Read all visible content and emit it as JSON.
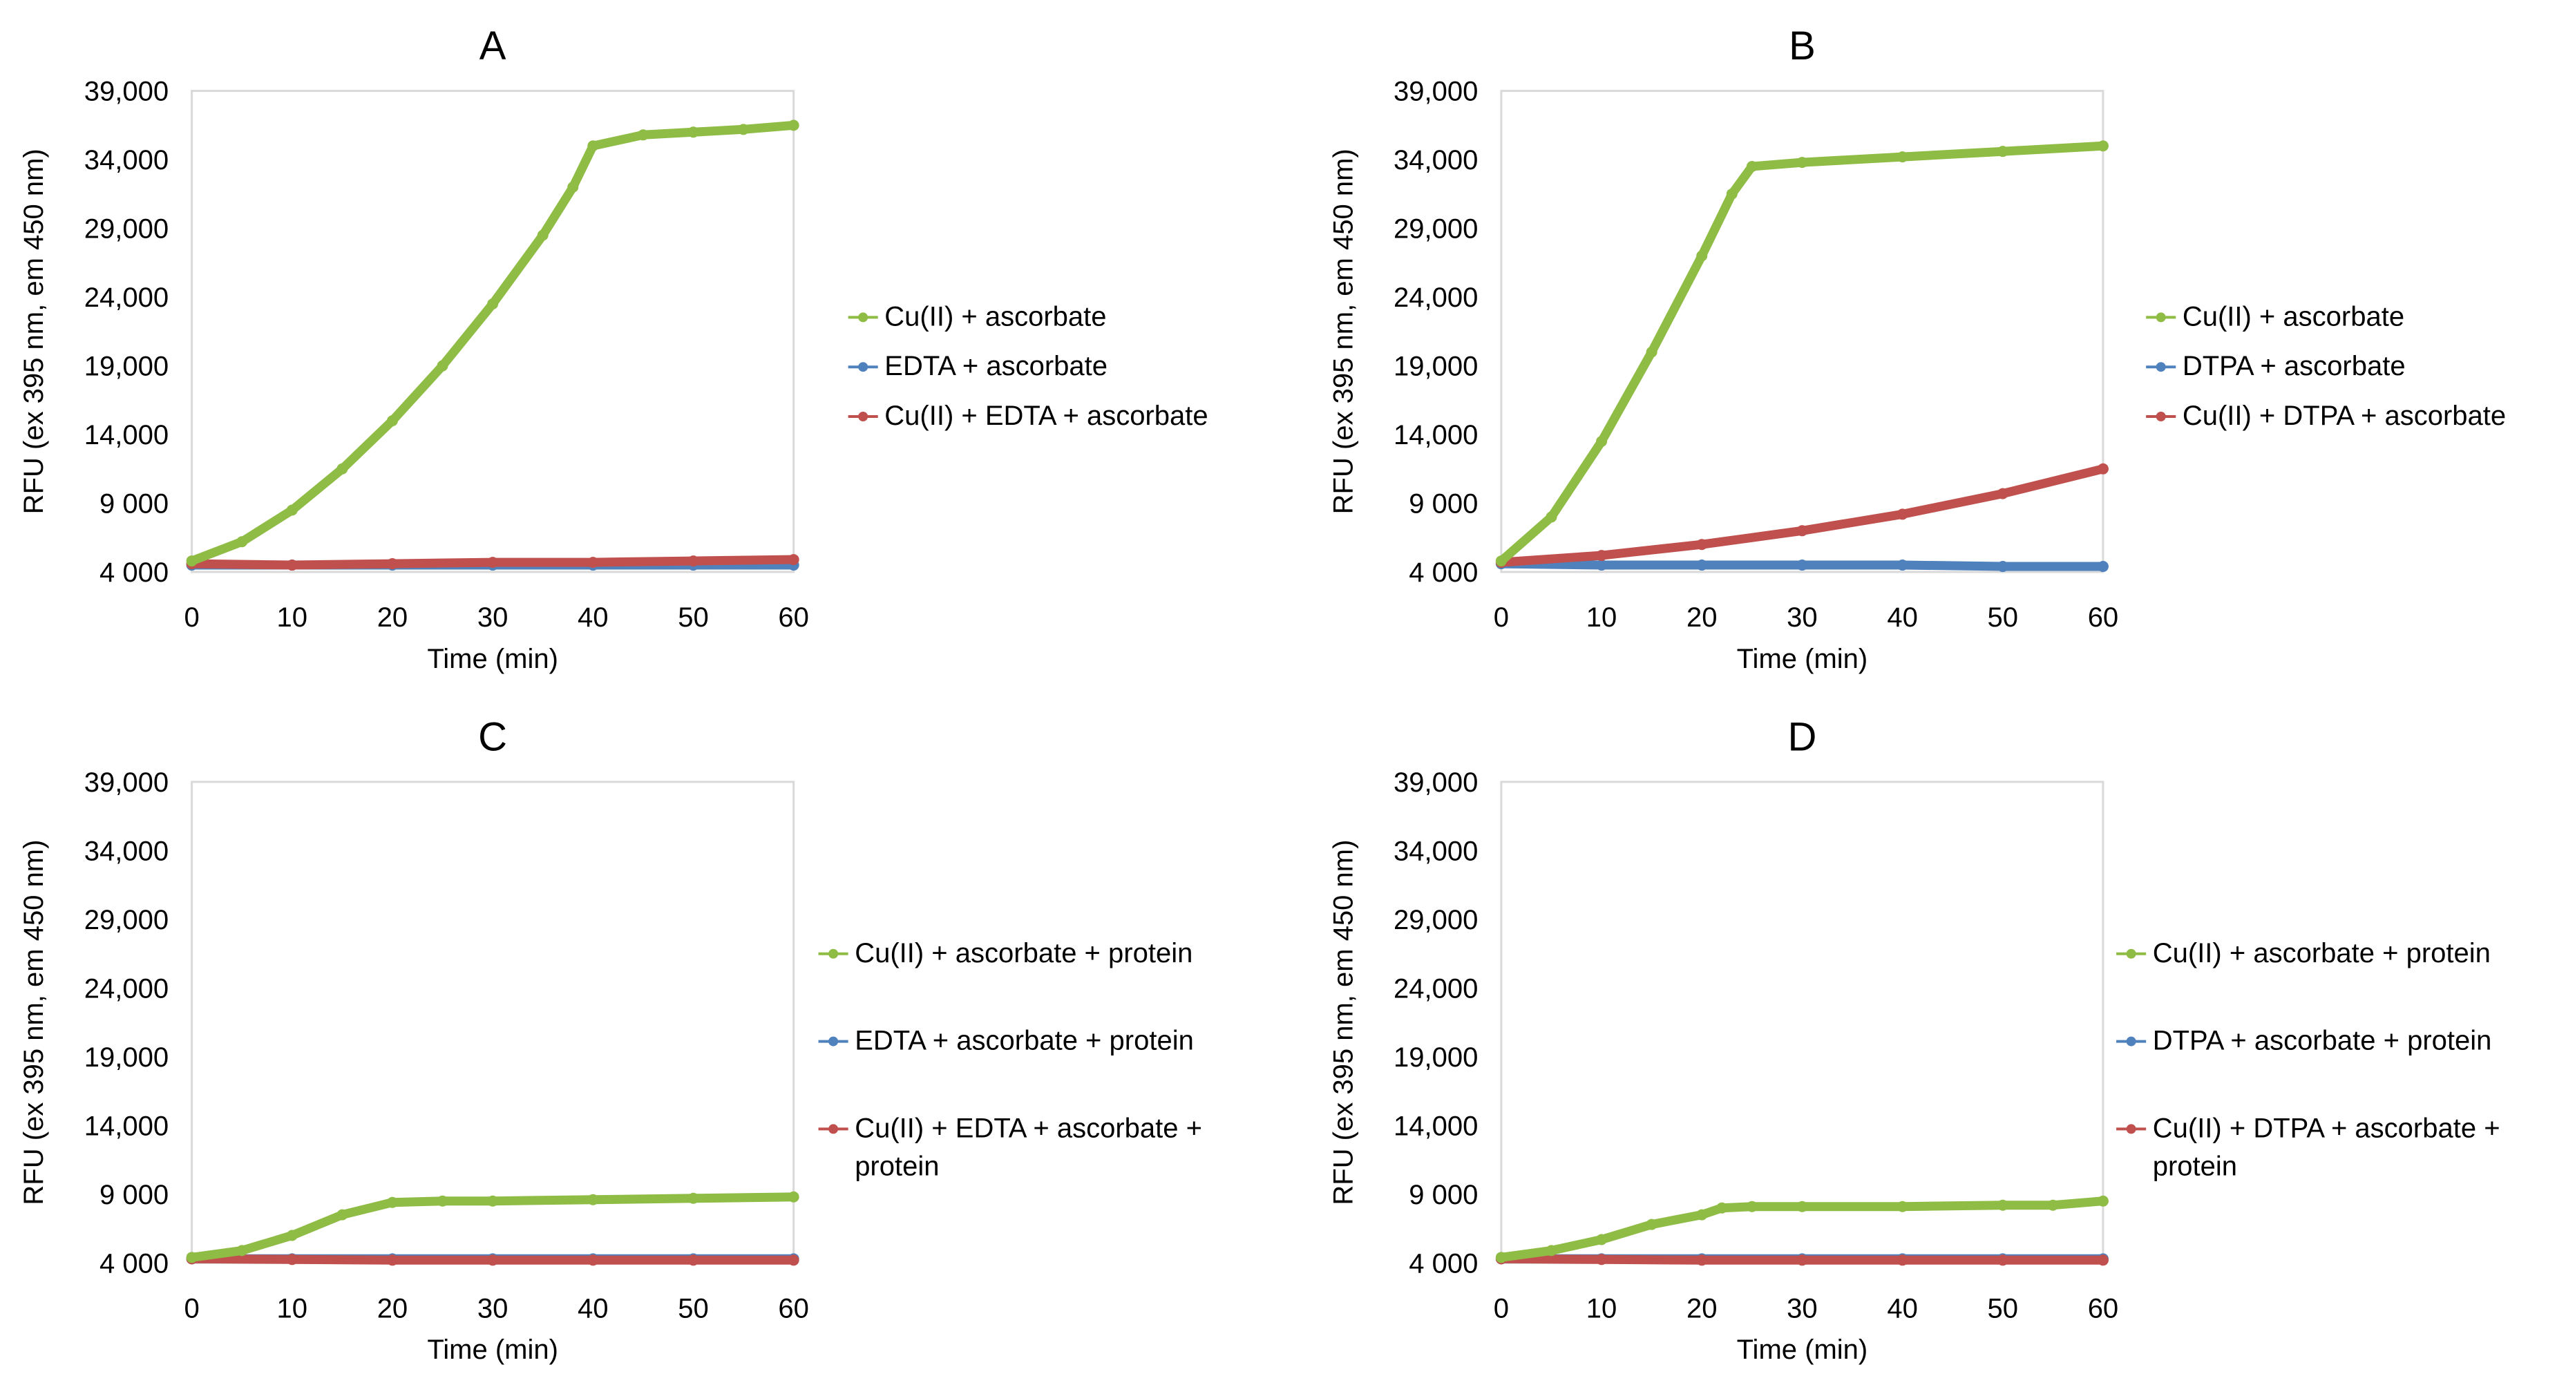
{
  "chart_data": [
    {
      "type": "line",
      "title": "A",
      "xlabel": "Time (min)",
      "ylabel": "RFU (ex 395 nm, em 450 nm)",
      "xlim": [
        0,
        60
      ],
      "ylim": [
        4000,
        39000
      ],
      "xticks": [
        "0",
        "10",
        "20",
        "30",
        "40",
        "50",
        "60"
      ],
      "yticks": [
        "4 000",
        "9 000",
        "14,000",
        "19,000",
        "24,000",
        "29,000",
        "34,000",
        "39,000"
      ],
      "legend_position": "right",
      "series": [
        {
          "name": "Cu(II) + ascorbate",
          "color": "#8fbc45",
          "x": [
            0,
            5,
            10,
            15,
            20,
            25,
            30,
            35,
            38,
            40,
            45,
            50,
            55,
            60
          ],
          "y": [
            4800,
            6200,
            8500,
            11500,
            15000,
            19000,
            23500,
            28500,
            32000,
            35000,
            35800,
            36000,
            36200,
            36500
          ]
        },
        {
          "name": "EDTA + ascorbate",
          "color": "#4f81bd",
          "x": [
            0,
            10,
            20,
            30,
            40,
            50,
            60
          ],
          "y": [
            4500,
            4500,
            4500,
            4500,
            4500,
            4500,
            4500
          ]
        },
        {
          "name": "Cu(II) + EDTA + ascorbate",
          "color": "#c0504d",
          "x": [
            0,
            10,
            20,
            30,
            40,
            50,
            60
          ],
          "y": [
            4600,
            4500,
            4600,
            4700,
            4700,
            4800,
            4900
          ]
        }
      ]
    },
    {
      "type": "line",
      "title": "B",
      "xlabel": "Time (min)",
      "ylabel": "RFU (ex 395 nm, em 450 nm)",
      "xlim": [
        0,
        60
      ],
      "ylim": [
        4000,
        39000
      ],
      "xticks": [
        "0",
        "10",
        "20",
        "30",
        "40",
        "50",
        "60"
      ],
      "yticks": [
        "4 000",
        "9 000",
        "14,000",
        "19,000",
        "24,000",
        "29,000",
        "34,000",
        "39,000"
      ],
      "legend_position": "right",
      "series": [
        {
          "name": "Cu(II) + ascorbate",
          "color": "#8fbc45",
          "x": [
            0,
            5,
            10,
            15,
            20,
            23,
            25,
            30,
            40,
            50,
            60
          ],
          "y": [
            4800,
            8000,
            13500,
            20000,
            27000,
            31500,
            33500,
            33800,
            34200,
            34600,
            35000
          ]
        },
        {
          "name": "DTPA + ascorbate",
          "color": "#4f81bd",
          "x": [
            0,
            10,
            20,
            30,
            40,
            50,
            60
          ],
          "y": [
            4600,
            4500,
            4500,
            4500,
            4500,
            4400,
            4400
          ]
        },
        {
          "name": "Cu(II) + DTPA + ascorbate",
          "color": "#c0504d",
          "x": [
            0,
            10,
            20,
            30,
            40,
            50,
            60
          ],
          "y": [
            4700,
            5200,
            6000,
            7000,
            8200,
            9700,
            11500
          ]
        }
      ]
    },
    {
      "type": "line",
      "title": "C",
      "xlabel": "Time (min)",
      "ylabel": "RFU (ex 395 nm, em 450 nm)",
      "xlim": [
        0,
        60
      ],
      "ylim": [
        4000,
        39000
      ],
      "xticks": [
        "0",
        "10",
        "20",
        "30",
        "40",
        "50",
        "60"
      ],
      "yticks": [
        "4 000",
        "9 000",
        "14,000",
        "19,000",
        "24,000",
        "29,000",
        "34,000",
        "39,000"
      ],
      "legend_position": "right",
      "series": [
        {
          "name": "Cu(II) + ascorbate + protein",
          "color": "#8fbc45",
          "x": [
            0,
            5,
            10,
            15,
            20,
            25,
            30,
            40,
            50,
            60
          ],
          "y": [
            4400,
            4900,
            6000,
            7500,
            8400,
            8500,
            8500,
            8600,
            8700,
            8800
          ]
        },
        {
          "name": "EDTA + ascorbate + protein",
          "color": "#4f81bd",
          "x": [
            0,
            10,
            20,
            30,
            40,
            50,
            60
          ],
          "y": [
            4300,
            4300,
            4300,
            4300,
            4300,
            4300,
            4300
          ]
        },
        {
          "name": "Cu(II) + EDTA  + ascorbate + protein",
          "color": "#c0504d",
          "x": [
            0,
            10,
            20,
            30,
            40,
            50,
            60
          ],
          "y": [
            4300,
            4250,
            4200,
            4200,
            4200,
            4200,
            4200
          ]
        }
      ]
    },
    {
      "type": "line",
      "title": "D",
      "xlabel": "Time (min)",
      "ylabel": "RFU (ex 395 nm, em 450 nm)",
      "xlim": [
        0,
        60
      ],
      "ylim": [
        4000,
        39000
      ],
      "xticks": [
        "0",
        "10",
        "20",
        "30",
        "40",
        "50",
        "60"
      ],
      "yticks": [
        "4 000",
        "9 000",
        "14,000",
        "19,000",
        "24,000",
        "29,000",
        "34,000",
        "39,000"
      ],
      "legend_position": "right",
      "series": [
        {
          "name": "Cu(II) + ascorbate + protein",
          "color": "#8fbc45",
          "x": [
            0,
            5,
            10,
            15,
            20,
            22,
            25,
            30,
            40,
            50,
            55,
            60
          ],
          "y": [
            4400,
            4900,
            5700,
            6800,
            7500,
            8000,
            8100,
            8100,
            8100,
            8200,
            8200,
            8500
          ]
        },
        {
          "name": "DTPA + ascorbate + protein",
          "color": "#4f81bd",
          "x": [
            0,
            10,
            20,
            30,
            40,
            50,
            60
          ],
          "y": [
            4300,
            4300,
            4300,
            4300,
            4300,
            4300,
            4300
          ]
        },
        {
          "name": "Cu(II) + DTPA +  ascorbate + protein",
          "color": "#c0504d",
          "x": [
            0,
            10,
            20,
            30,
            40,
            50,
            60
          ],
          "y": [
            4300,
            4250,
            4200,
            4200,
            4200,
            4200,
            4200
          ]
        }
      ]
    }
  ]
}
